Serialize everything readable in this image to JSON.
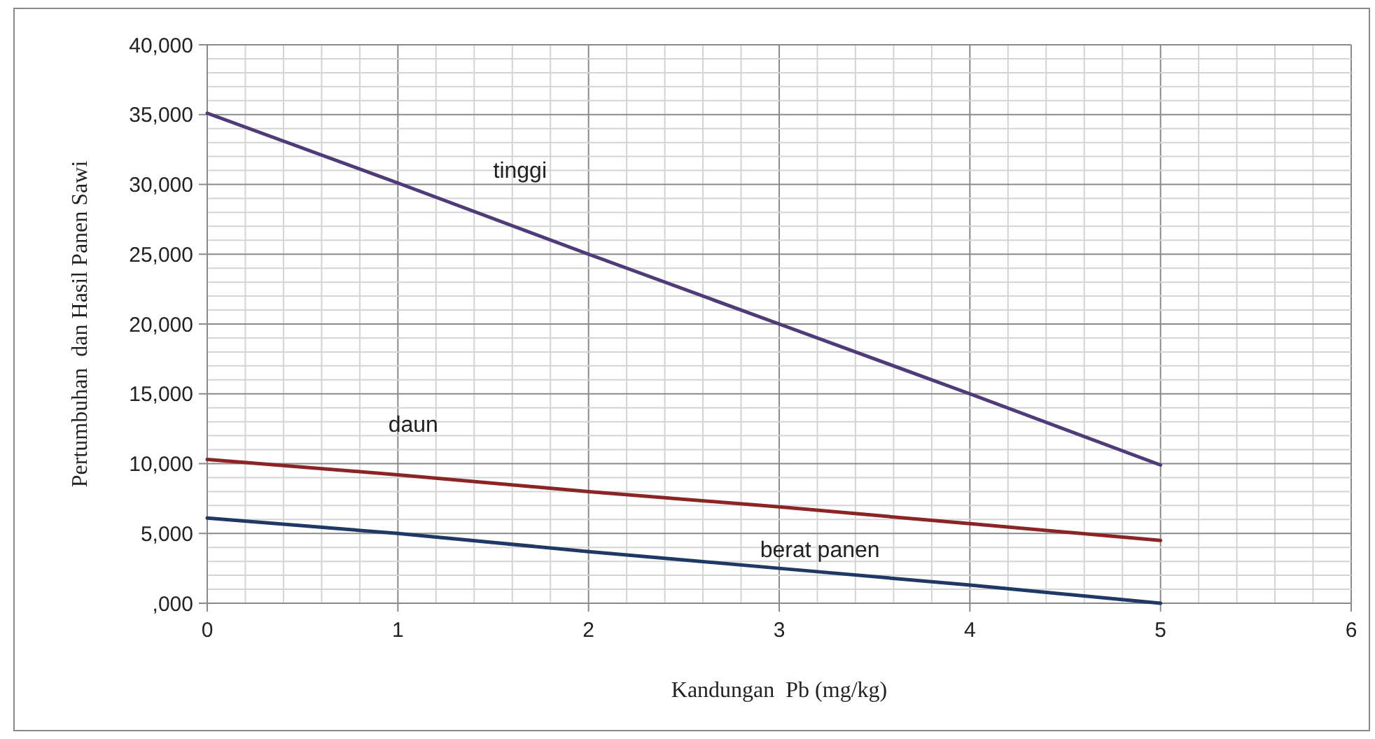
{
  "chart_data": {
    "type": "line",
    "xlabel": "Kandungan  Pb (mg/kg)",
    "ylabel": "Pertumbuhan  dan Hasil Panen Sawi",
    "x": [
      0,
      1,
      2,
      3,
      4,
      5
    ],
    "series": [
      {
        "name": "tinggi",
        "color": "#4f3b78",
        "values": [
          35100,
          30100,
          25000,
          20000,
          15000,
          9900
        ]
      },
      {
        "name": "daun",
        "color": "#8b2525",
        "values": [
          10300,
          9200,
          8000,
          6900,
          5700,
          4500
        ]
      },
      {
        "name": "berat panen",
        "color": "#1f3864",
        "values": [
          6100,
          5000,
          3700,
          2500,
          1300,
          0
        ]
      }
    ],
    "xlim": [
      0,
      6
    ],
    "xticks": [
      0,
      {
        "value": 0.2,
        "label": null
      },
      {
        "value": 0.4,
        "label": null
      },
      {
        "value": 0.6,
        "label": null
      },
      {
        "value": 0.8,
        "label": null
      },
      1,
      {
        "value": 1.2,
        "label": null
      },
      {
        "value": 1.4,
        "label": null
      },
      {
        "value": 1.6,
        "label": null
      },
      {
        "value": 1.8,
        "label": null
      },
      2,
      {
        "value": 2.2,
        "label": null
      },
      {
        "value": 2.4,
        "label": null
      },
      {
        "value": 2.6,
        "label": null
      },
      {
        "value": 2.8,
        "label": null
      },
      3,
      {
        "value": 3.2,
        "label": null
      },
      {
        "value": 3.4,
        "label": null
      },
      {
        "value": 3.6,
        "label": null
      },
      {
        "value": 3.8,
        "label": null
      },
      4,
      {
        "value": 4.2,
        "label": null
      },
      {
        "value": 4.4,
        "label": null
      },
      {
        "value": 4.6,
        "label": null
      },
      {
        "value": 4.8,
        "label": null
      },
      5,
      {
        "value": 5.2,
        "label": null
      },
      {
        "value": 5.4,
        "label": null
      },
      {
        "value": 5.6,
        "label": null
      },
      {
        "value": 5.8,
        "label": null
      },
      6
    ],
    "ylim": [
      0,
      40000
    ],
    "yticks": [
      {
        "value": 0,
        "label": ",000"
      },
      {
        "value": 1000,
        "label": null
      },
      {
        "value": 2000,
        "label": null
      },
      {
        "value": 3000,
        "label": null
      },
      {
        "value": 4000,
        "label": null
      },
      {
        "value": 5000,
        "label": "5,000"
      },
      {
        "value": 6000,
        "label": null
      },
      {
        "value": 7000,
        "label": null
      },
      {
        "value": 8000,
        "label": null
      },
      {
        "value": 9000,
        "label": null
      },
      {
        "value": 10000,
        "label": "10,000"
      },
      {
        "value": 11000,
        "label": null
      },
      {
        "value": 12000,
        "label": null
      },
      {
        "value": 13000,
        "label": null
      },
      {
        "value": 14000,
        "label": null
      },
      {
        "value": 15000,
        "label": "15,000"
      },
      {
        "value": 16000,
        "label": null
      },
      {
        "value": 17000,
        "label": null
      },
      {
        "value": 18000,
        "label": null
      },
      {
        "value": 19000,
        "label": null
      },
      {
        "value": 20000,
        "label": "20,000"
      },
      {
        "value": 21000,
        "label": null
      },
      {
        "value": 22000,
        "label": null
      },
      {
        "value": 23000,
        "label": null
      },
      {
        "value": 24000,
        "label": null
      },
      {
        "value": 25000,
        "label": "25,000"
      },
      {
        "value": 26000,
        "label": null
      },
      {
        "value": 27000,
        "label": null
      },
      {
        "value": 28000,
        "label": null
      },
      {
        "value": 29000,
        "label": null
      },
      {
        "value": 30000,
        "label": "30,000"
      },
      {
        "value": 31000,
        "label": null
      },
      {
        "value": 32000,
        "label": null
      },
      {
        "value": 33000,
        "label": null
      },
      {
        "value": 34000,
        "label": null
      },
      {
        "value": 35000,
        "label": "35,000"
      },
      {
        "value": 36000,
        "label": null
      },
      {
        "value": 37000,
        "label": null
      },
      {
        "value": 38000,
        "label": null
      },
      {
        "value": 39000,
        "label": null
      },
      {
        "value": 40000,
        "label": "40,000"
      }
    ],
    "grid": true,
    "marker": "none",
    "line_style": "solid"
  }
}
